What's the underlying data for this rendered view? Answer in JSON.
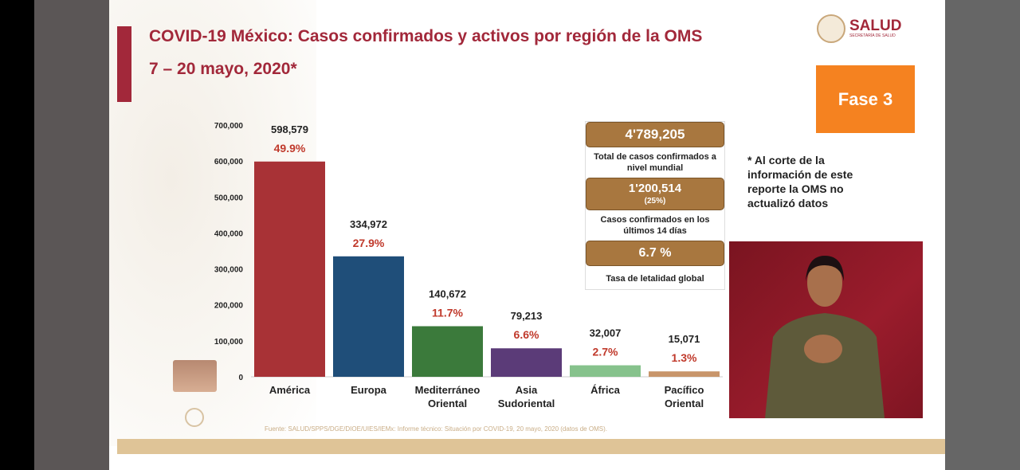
{
  "title": "COVID-19 México: Casos confirmados y activos por región de la OMS",
  "subtitle": "7 – 20 mayo, 2020*",
  "logo": {
    "text": "SALUD",
    "sub": "SECRETARÍA DE SALUD"
  },
  "phase": "Fase 3",
  "panel": {
    "total_value": "4'789,205",
    "total_label": "Total de casos confirmados a nivel mundial",
    "recent_value": "1'200,514",
    "recent_pct": "(25%)",
    "recent_label": "Casos confirmados en los últimos 14 días",
    "lethality_value": "6.7 %",
    "lethality_label": "Tasa de letalidad global"
  },
  "note": "* Al corte de la información de este reporte la OMS no actualizó datos",
  "source": "Fuente: SALUD/SPPS/DGE/DIOE/UIES/IEMx: Informe técnico: Situación por COVID-19, 20 mayo, 2020 (datos de OMS).",
  "chart_data": {
    "type": "bar",
    "categories": [
      "América",
      "Europa",
      "Mediterráneo Oriental",
      "Asia Sudoriental",
      "África",
      "Pacífico Oriental"
    ],
    "values": [
      598579,
      334972,
      140672,
      79213,
      32007,
      15071
    ],
    "value_labels": [
      "598,579",
      "334,972",
      "140,672",
      "79,213",
      "32,007",
      "15,071"
    ],
    "percent_labels": [
      "49.9%",
      "27.9%",
      "11.7%",
      "6.6%",
      "2.7%",
      "1.3%"
    ],
    "colors": [
      "#a83236",
      "#1f4e79",
      "#3b7a3b",
      "#5b3b78",
      "#86c28c",
      "#c8956a"
    ],
    "ylim": [
      0,
      700000
    ],
    "yticks": [
      "0",
      "100,000",
      "200,000",
      "300,000",
      "400,000",
      "500,000",
      "600,000",
      "700,000"
    ],
    "grid": false
  }
}
